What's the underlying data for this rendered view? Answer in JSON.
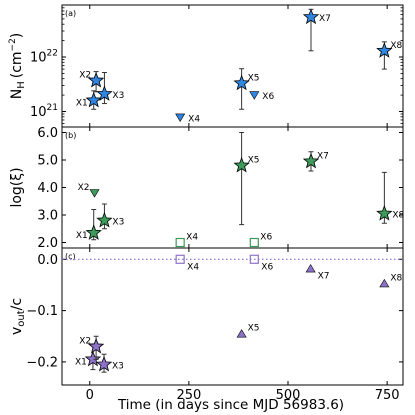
{
  "chart_data": {
    "type": "scatter",
    "xlabel": "Time (in days since MJD 56983.6)",
    "xlim": [
      -70,
      790
    ],
    "xticks": [
      {
        "v": 0,
        "t": "0"
      },
      {
        "v": 250,
        "t": "250"
      },
      {
        "v": 500,
        "t": "500"
      },
      {
        "v": 750,
        "t": "750"
      }
    ],
    "colors": {
      "nh": "#2f85e0",
      "xi": "#3d9a5a",
      "vout": "#8e72c8",
      "dotted": "#7c6ce3"
    },
    "panels": [
      {
        "id": "nh",
        "label": "(a)",
        "ylabel_main": "N",
        "ylabel_sub": "H",
        "ylabel_unit": "(cm",
        "ylabel_sup": "−2",
        "ylabel_end": ")",
        "yscale": "log",
        "ylim": [
          5.2e+20,
          9e+22
        ],
        "yticks": [
          {
            "v": 1e+21,
            "base": "10",
            "exp": "21"
          },
          {
            "v": 1e+22,
            "base": "10",
            "exp": "22"
          }
        ],
        "points": [
          {
            "name": "X1",
            "x": 10,
            "y": 1.6e+21,
            "lo": 1.1e+21,
            "hi": 2.4e+21,
            "marker": "star",
            "lpos": "left"
          },
          {
            "name": "X2",
            "x": 16,
            "y": 3.7e+21,
            "lo": 2.3e+21,
            "hi": 5.4e+21,
            "marker": "star",
            "lpos": "upleft"
          },
          {
            "name": "X3",
            "x": 37,
            "y": 2.1e+21,
            "lo": 1.4e+21,
            "hi": 5.2e+21,
            "marker": "star",
            "lpos": "right"
          },
          {
            "name": "X4",
            "x": 228,
            "y": 7.8e+20,
            "marker": "tri-down",
            "lpos": "right"
          },
          {
            "name": "X5",
            "x": 383,
            "y": 3.3e+21,
            "lo": 1.1e+21,
            "hi": 6.1e+21,
            "marker": "star",
            "lpos": "upright"
          },
          {
            "name": "X6",
            "x": 415,
            "y": 2e+21,
            "marker": "tri-down",
            "lpos": "right"
          },
          {
            "name": "X7",
            "x": 558,
            "y": 5.4e+22,
            "lo": 1.3e+22,
            "hi": 7.5e+22,
            "marker": "star",
            "lpos": "right"
          },
          {
            "name": "X8",
            "x": 743,
            "y": 1.3e+22,
            "lo": 6e+21,
            "hi": 1.9e+22,
            "marker": "star",
            "lpos": "upright"
          }
        ]
      },
      {
        "id": "xi",
        "label": "(b)",
        "ylabel_main": "log(ξ)",
        "yscale": "linear",
        "ylim": [
          1.8,
          6.2
        ],
        "yticks": [
          {
            "v": 2,
            "t": "2.0"
          },
          {
            "v": 3,
            "t": "3.0"
          },
          {
            "v": 4,
            "t": "4.0"
          },
          {
            "v": 5,
            "t": "5.0"
          },
          {
            "v": 6,
            "t": "6.0"
          }
        ],
        "points": [
          {
            "name": "X1",
            "x": 10,
            "y": 2.35,
            "lo": 2.1,
            "hi": 3.2,
            "marker": "star",
            "lpos": "left"
          },
          {
            "name": "X2",
            "x": 12,
            "y": 3.8,
            "marker": "tri-down",
            "lpos": "upleft"
          },
          {
            "name": "X3",
            "x": 37,
            "y": 2.8,
            "lo": 2.5,
            "hi": 3.4,
            "marker": "star",
            "lpos": "right"
          },
          {
            "name": "X4",
            "x": 228,
            "y": 2.0,
            "marker": "square-open",
            "lpos": "upright"
          },
          {
            "name": "X5",
            "x": 383,
            "y": 4.8,
            "lo": 2.65,
            "hi": 6.0,
            "marker": "star",
            "lpos": "upright"
          },
          {
            "name": "X6",
            "x": 415,
            "y": 2.0,
            "marker": "square-open",
            "lpos": "upright"
          },
          {
            "name": "X7",
            "x": 558,
            "y": 4.95,
            "lo": 4.6,
            "hi": 5.3,
            "marker": "star",
            "lpos": "upright"
          },
          {
            "name": "X8",
            "x": 743,
            "y": 3.05,
            "lo": 2.7,
            "hi": 4.55,
            "marker": "star",
            "lpos": "right"
          }
        ]
      },
      {
        "id": "vout",
        "label": "(c)",
        "ylabel_main": "v",
        "ylabel_sub": "out",
        "ylabel_end": "/c",
        "yscale": "linear",
        "ylim": [
          -0.245,
          0.022
        ],
        "yticks": [
          {
            "v": 0.0,
            "t": "0.0"
          },
          {
            "v": -0.1,
            "t": "−0.1"
          },
          {
            "v": -0.2,
            "t": "−0.2"
          }
        ],
        "hline": 0.0,
        "points": [
          {
            "name": "X1",
            "x": 8,
            "y": -0.195,
            "lo": -0.215,
            "hi": -0.165,
            "marker": "star",
            "lpos": "left"
          },
          {
            "name": "X2",
            "x": 16,
            "y": -0.17,
            "lo": -0.195,
            "hi": -0.15,
            "marker": "star",
            "lpos": "upleft"
          },
          {
            "name": "X3",
            "x": 36,
            "y": -0.205,
            "lo": -0.22,
            "hi": -0.185,
            "marker": "star",
            "lpos": "right"
          },
          {
            "name": "X4",
            "x": 228,
            "y": 0.0,
            "marker": "square-open",
            "lpos": "downright"
          },
          {
            "name": "X5",
            "x": 383,
            "y": -0.145,
            "marker": "tri-up",
            "lpos": "upright"
          },
          {
            "name": "X6",
            "x": 415,
            "y": 0.0,
            "marker": "square-open",
            "lpos": "downright"
          },
          {
            "name": "X7",
            "x": 557,
            "y": -0.018,
            "marker": "tri-up",
            "lpos": "downright"
          },
          {
            "name": "X8",
            "x": 743,
            "y": -0.047,
            "marker": "tri-up",
            "lpos": "upright"
          }
        ]
      }
    ]
  }
}
